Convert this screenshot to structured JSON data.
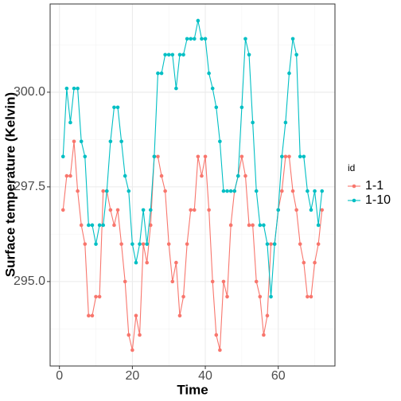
{
  "chart_data": {
    "type": "line",
    "xlabel": "Time",
    "ylabel": "Surface temperature (Kelvin)",
    "legend_title": "id",
    "legend_position": "right",
    "grid": true,
    "x": [
      1,
      2,
      3,
      4,
      5,
      6,
      7,
      8,
      9,
      10,
      11,
      12,
      13,
      14,
      15,
      16,
      17,
      18,
      19,
      20,
      21,
      22,
      23,
      24,
      25,
      26,
      27,
      28,
      29,
      30,
      31,
      32,
      33,
      34,
      35,
      36,
      37,
      38,
      39,
      40,
      41,
      42,
      43,
      44,
      45,
      46,
      47,
      48,
      49,
      50,
      51,
      52,
      53,
      54,
      55,
      56,
      57,
      58,
      59,
      60,
      61,
      62,
      63,
      64,
      65,
      66,
      67,
      68,
      69,
      70,
      71,
      72
    ],
    "series": [
      {
        "name": "1-1",
        "color": "#F8766D",
        "values": [
          296.89,
          297.79,
          297.79,
          298.7,
          297.39,
          296.49,
          295.99,
          294.1,
          294.1,
          294.6,
          294.6,
          297.39,
          297.39,
          296.89,
          296.49,
          296.89,
          295.99,
          295.0,
          293.59,
          293.19,
          294.1,
          293.59,
          295.99,
          295.5,
          296.49,
          298.3,
          298.3,
          297.79,
          297.39,
          295.99,
          295.0,
          295.5,
          294.1,
          294.6,
          295.99,
          296.89,
          296.89,
          298.3,
          297.79,
          298.3,
          296.89,
          295.0,
          293.59,
          293.19,
          295.0,
          294.6,
          296.49,
          297.39,
          297.79,
          298.3,
          297.79,
          296.49,
          296.49,
          295.0,
          294.6,
          293.59,
          294.1,
          295.99,
          295.99,
          296.89,
          297.39,
          298.3,
          298.3,
          297.39,
          296.89,
          295.99,
          295.5,
          294.6,
          294.6,
          295.5,
          295.99,
          296.89
        ]
      },
      {
        "name": "1-10",
        "color": "#00BFC4",
        "values": [
          298.3,
          300.1,
          299.2,
          300.1,
          300.1,
          298.7,
          298.3,
          296.49,
          296.49,
          295.99,
          296.49,
          296.49,
          297.39,
          298.7,
          299.6,
          299.6,
          298.7,
          297.79,
          297.39,
          295.99,
          295.5,
          295.99,
          296.89,
          295.99,
          296.89,
          298.3,
          300.5,
          300.5,
          300.99,
          300.99,
          300.99,
          300.1,
          300.99,
          300.99,
          301.41,
          301.41,
          301.41,
          301.89,
          301.41,
          301.41,
          300.5,
          300.1,
          299.6,
          298.7,
          297.39,
          297.39,
          297.39,
          297.39,
          297.79,
          299.6,
          301.41,
          300.99,
          299.2,
          297.39,
          296.49,
          296.49,
          295.99,
          294.6,
          295.99,
          296.89,
          298.3,
          299.2,
          300.5,
          301.41,
          300.99,
          298.3,
          298.3,
          297.39,
          296.89,
          297.39,
          296.49,
          297.39
        ]
      }
    ],
    "xlim": [
      -2.55,
      75.55
    ],
    "xticks": [
      0,
      20,
      40,
      60
    ],
    "xminor": [
      10,
      30,
      50,
      70
    ],
    "ylim": [
      292.77,
      302.33
    ],
    "yticks": [
      {
        "value": 295,
        "label": "295.0"
      },
      {
        "value": 297.5,
        "label": "297.5"
      },
      {
        "value": 300,
        "label": "300.0"
      }
    ],
    "yminor": [
      293.75,
      296.25,
      298.75,
      301.25
    ]
  }
}
